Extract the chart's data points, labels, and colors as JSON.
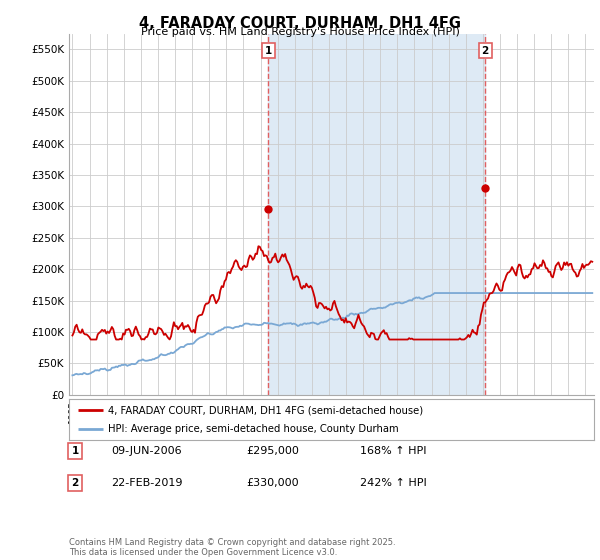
{
  "title": "4, FARADAY COURT, DURHAM, DH1 4FG",
  "subtitle": "Price paid vs. HM Land Registry's House Price Index (HPI)",
  "ylabel_ticks": [
    "£0",
    "£50K",
    "£100K",
    "£150K",
    "£200K",
    "£250K",
    "£300K",
    "£350K",
    "£400K",
    "£450K",
    "£500K",
    "£550K"
  ],
  "ylim": [
    0,
    575000
  ],
  "xlim_start": 1994.8,
  "xlim_end": 2025.5,
  "sale1": {
    "date_num": 2006.44,
    "price": 295000,
    "label": "1"
  },
  "sale2": {
    "date_num": 2019.13,
    "price": 330000,
    "label": "2"
  },
  "vline_color": "#e06060",
  "red_line_color": "#cc0000",
  "blue_line_color": "#7aa8d4",
  "shade_color": "#deeaf5",
  "grid_color": "#cccccc",
  "background_color": "#ffffff",
  "legend_label_red": "4, FARADAY COURT, DURHAM, DH1 4FG (semi-detached house)",
  "legend_label_blue": "HPI: Average price, semi-detached house, County Durham",
  "footnote": "Contains HM Land Registry data © Crown copyright and database right 2025.\nThis data is licensed under the Open Government Licence v3.0.",
  "table_rows": [
    {
      "num": "1",
      "date": "09-JUN-2006",
      "price": "£295,000",
      "hpi": "168% ↑ HPI"
    },
    {
      "num": "2",
      "date": "22-FEB-2019",
      "price": "£330,000",
      "hpi": "242% ↑ HPI"
    }
  ]
}
